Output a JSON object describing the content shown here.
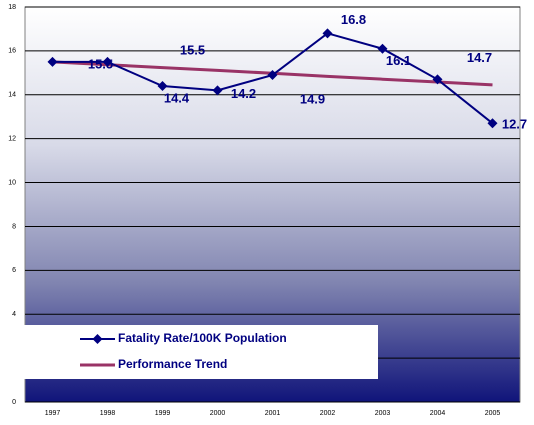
{
  "chart_data": {
    "type": "line",
    "categories": [
      "1997",
      "1998",
      "1999",
      "2000",
      "2001",
      "2002",
      "2003",
      "2004",
      "2005"
    ],
    "series": [
      {
        "name": "Fatality Rate/100K Population",
        "color": "#000080",
        "values": [
          15.5,
          15.5,
          14.4,
          14.2,
          14.9,
          16.8,
          16.1,
          14.7,
          12.7
        ],
        "value_labels": [
          "15.5",
          "15.5",
          "14.4",
          "14.2",
          "14.9",
          "16.8",
          "16.1",
          "14.7",
          "12.7"
        ]
      },
      {
        "name": "Performance Trend",
        "color": "#993366",
        "values": [
          15.5,
          15.37,
          15.24,
          15.11,
          14.98,
          14.84,
          14.71,
          14.58,
          14.45
        ]
      }
    ],
    "ylim": [
      0,
      18
    ],
    "yticks": [
      0,
      2,
      4,
      6,
      8,
      10,
      12,
      14,
      16,
      18
    ],
    "grid": true
  }
}
